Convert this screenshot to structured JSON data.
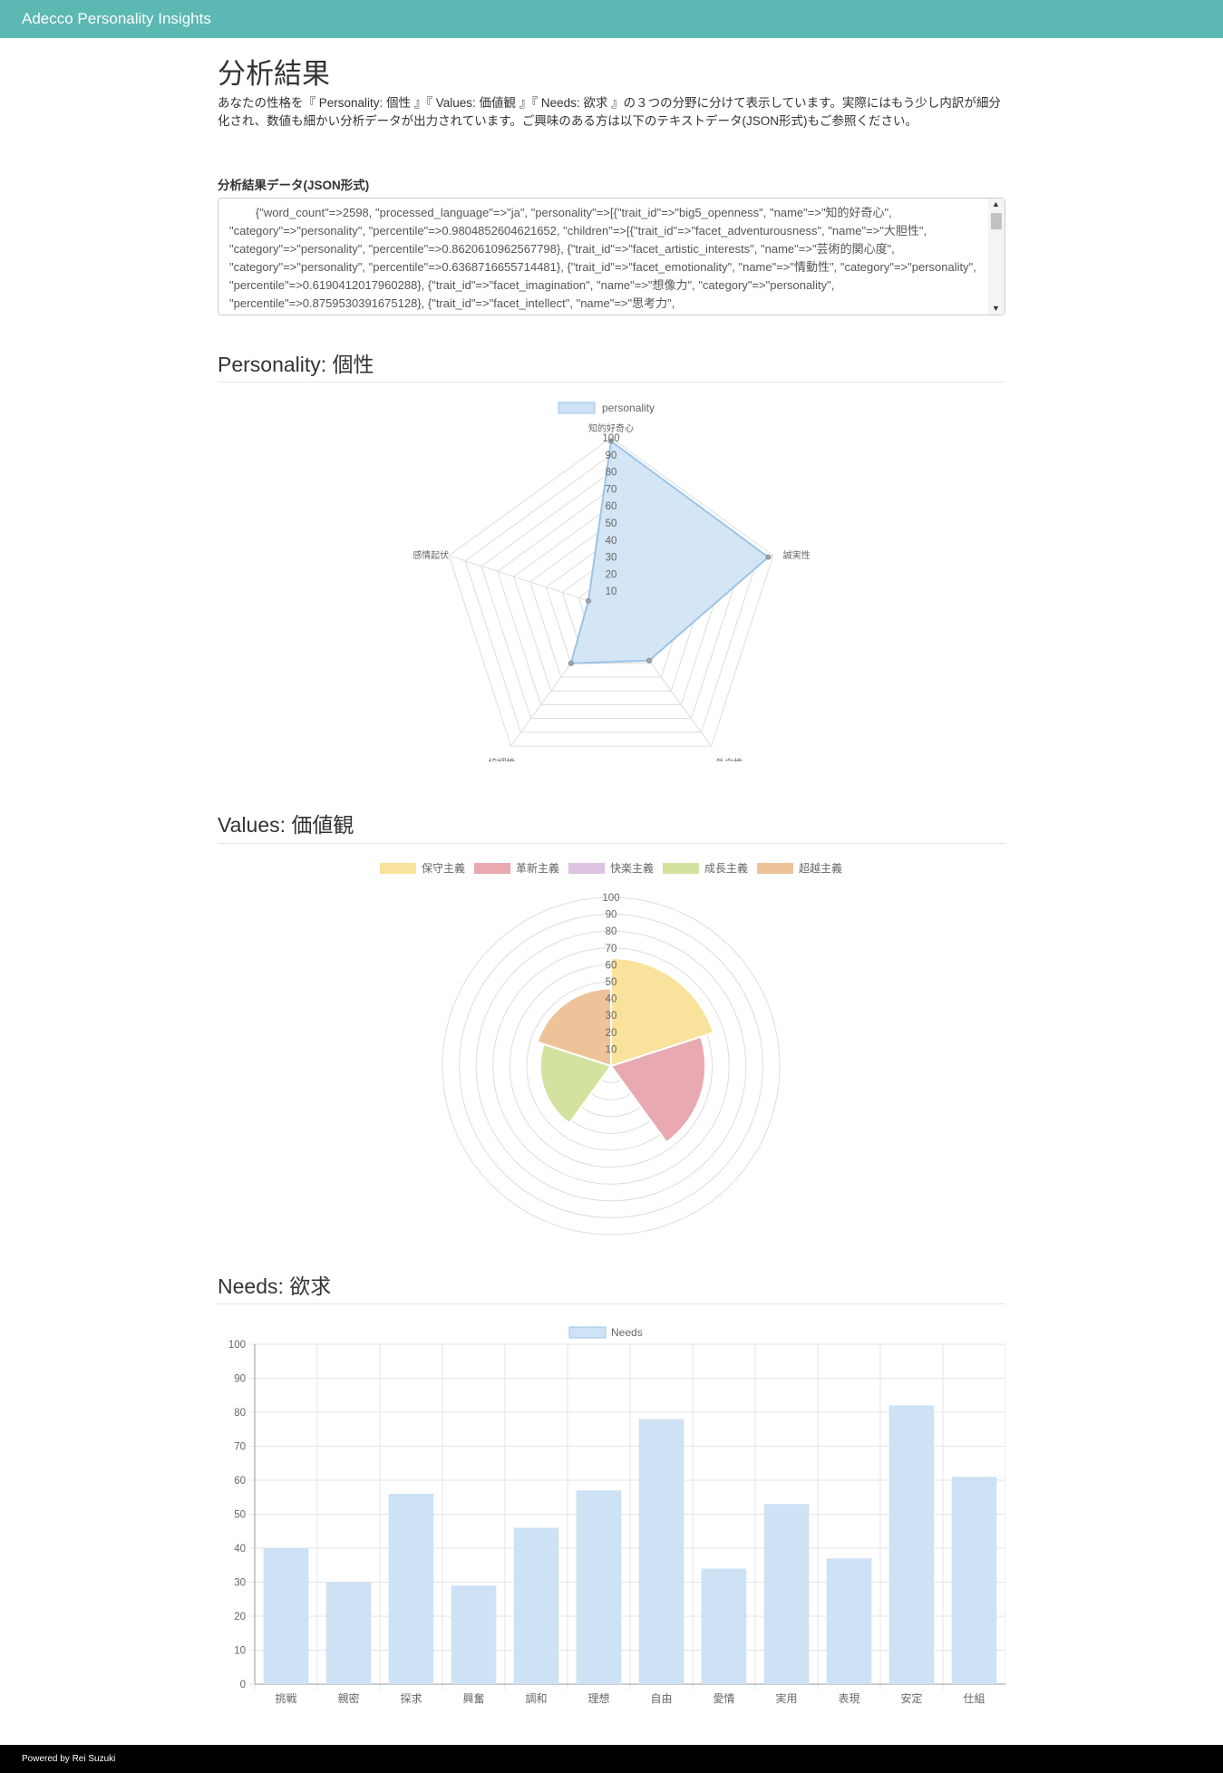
{
  "navbar": {
    "brand": "Adecco Personality Insights"
  },
  "page": {
    "title": "分析結果",
    "intro": "あなたの性格を『 Personality: 個性 』『 Values: 価値観 』『 Needs: 欲求 』の３つの分野に分けて表示しています。実際にはもう少し内訳が細分化され、数値も細かい分析データが出力されています。ご興味のある方は以下のテキストデータ(JSON形式)もご参照ください。"
  },
  "json_section": {
    "label": "分析結果データ(JSON形式)",
    "value": "        {\"word_count\"=>2598, \"processed_language\"=>\"ja\", \"personality\"=>[{\"trait_id\"=>\"big5_openness\", \"name\"=>\"知的好奇心\", \"category\"=>\"personality\", \"percentile\"=>0.9804852604621652, \"children\"=>[{\"trait_id\"=>\"facet_adventurousness\", \"name\"=>\"大胆性\", \"category\"=>\"personality\", \"percentile\"=>0.8620610962567798}, {\"trait_id\"=>\"facet_artistic_interests\", \"name\"=>\"芸術的関心度\", \"category\"=>\"personality\", \"percentile\"=>0.6368716655714481}, {\"trait_id\"=>\"facet_emotionality\", \"name\"=>\"情動性\", \"category\"=>\"personality\", \"percentile\"=>0.6190412017960288}, {\"trait_id\"=>\"facet_imagination\", \"name\"=>\"想像力\", \"category\"=>\"personality\", \"percentile\"=>0.8759530391675128}, {\"trait_id\"=>\"facet_intellect\", \"name\"=>\"思考力\","
  },
  "personality": {
    "title": "Personality: 個性",
    "chart_data": {
      "type": "radar",
      "categories": [
        "知的好奇心",
        "誠実性",
        "外向性",
        "協調性",
        "感情起伏"
      ],
      "series": [
        {
          "name": "personality",
          "values": [
            98,
            97,
            38,
            40,
            14
          ]
        }
      ],
      "ticks": [
        "10",
        "20",
        "30",
        "40",
        "50",
        "60",
        "70",
        "80",
        "90",
        "100"
      ],
      "rlim": [
        0,
        100
      ],
      "color": "#cde2f4",
      "stroke": "#9dc3e6",
      "legend": "top"
    }
  },
  "values": {
    "title": "Values: 価値観",
    "chart_data": {
      "type": "polarArea",
      "categories": [
        "保守主義",
        "革新主義",
        "快楽主義",
        "成長主義",
        "超越主義"
      ],
      "values": [
        64,
        56,
        2,
        42,
        46
      ],
      "colors": [
        "#f9e29c",
        "#e8a9b0",
        "#dcc3e0",
        "#d4e2a0",
        "#eec399"
      ],
      "ticks": [
        "10",
        "20",
        "30",
        "40",
        "50",
        "60",
        "70",
        "80",
        "90",
        "100"
      ],
      "rlim": [
        0,
        100
      ],
      "legend": "top"
    }
  },
  "needs": {
    "title": "Needs: 欲求",
    "chart_data": {
      "type": "bar",
      "categories": [
        "挑戦",
        "親密",
        "探求",
        "興奮",
        "調和",
        "理想",
        "自由",
        "愛情",
        "実用",
        "表現",
        "安定",
        "仕組"
      ],
      "series": [
        {
          "name": "Needs",
          "values": [
            40,
            30,
            56,
            29,
            46,
            57,
            78,
            34,
            53,
            37,
            82,
            61
          ]
        }
      ],
      "ticks": [
        "0",
        "10",
        "20",
        "30",
        "40",
        "50",
        "60",
        "70",
        "80",
        "90",
        "100"
      ],
      "ylim": [
        0,
        100
      ],
      "color": "#cde2f4",
      "legend": "top",
      "grid": true
    }
  },
  "footer": {
    "text": "Powered by Rei Suzuki"
  }
}
